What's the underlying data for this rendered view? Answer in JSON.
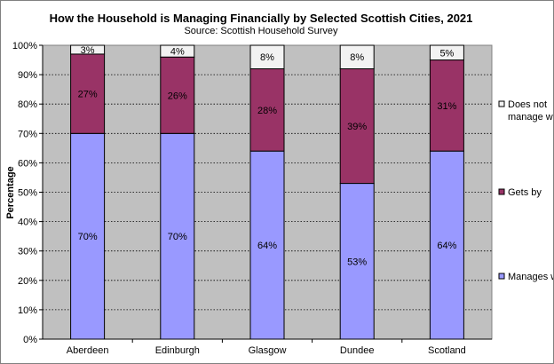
{
  "chart_data": {
    "type": "bar",
    "stacked": true,
    "title": "How the Household is Managing Financially by Selected Scottish Cities, 2021",
    "subtitle": "Source: Scottish Household Survey",
    "xlabel": "",
    "ylabel": "Percentage",
    "ylim": [
      0,
      100
    ],
    "yticks": [
      "0%",
      "10%",
      "20%",
      "30%",
      "40%",
      "50%",
      "60%",
      "70%",
      "80%",
      "90%",
      "100%"
    ],
    "categories": [
      "Aberdeen",
      "Edinburgh",
      "Glasgow",
      "Dundee",
      "Scotland"
    ],
    "grid": "horizontal dotted",
    "legend_position": "right",
    "plot_background": "#c0c0c0",
    "series": [
      {
        "name": "Manages well",
        "color": "#9999ff",
        "values": [
          70,
          70,
          64,
          53,
          64
        ],
        "labels": [
          "70%",
          "70%",
          "64%",
          "53%",
          "64%"
        ]
      },
      {
        "name": "Gets by",
        "color": "#993366",
        "values": [
          27,
          26,
          28,
          39,
          31
        ],
        "labels": [
          "27%",
          "26%",
          "28%",
          "39%",
          "31%"
        ]
      },
      {
        "name": "Does not manage well",
        "legend_lines": [
          "Does not",
          "manage well"
        ],
        "color": "#f2f2f2",
        "values": [
          3,
          4,
          8,
          8,
          5
        ],
        "labels": [
          "3%",
          "4%",
          "8%",
          "8%",
          "5%"
        ]
      }
    ]
  }
}
